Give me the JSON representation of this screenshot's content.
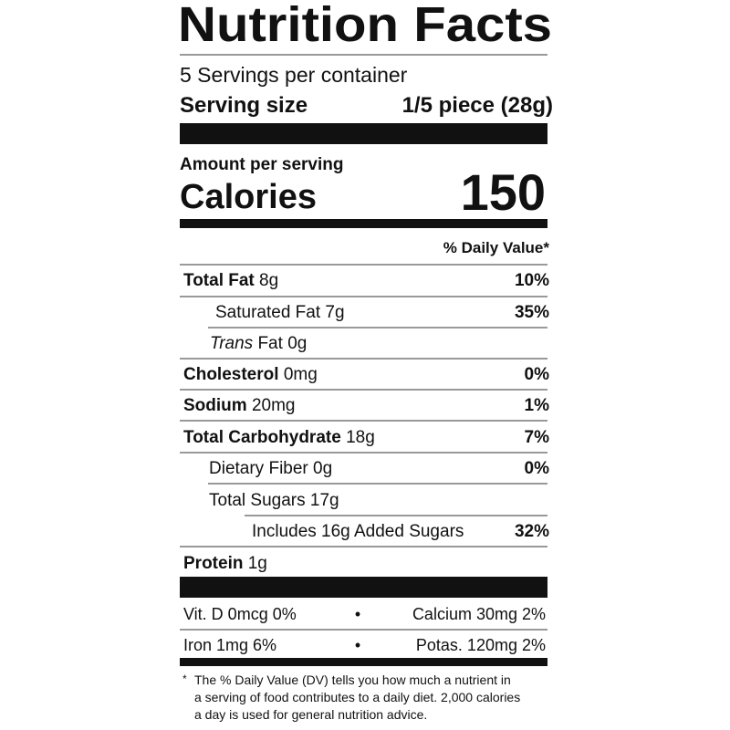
{
  "title": "Nutrition Facts",
  "servings_per_container": "5 Servings per container",
  "serving_size": {
    "label": "Serving size",
    "value": "1/5 piece (28g)"
  },
  "amount_per_serving": "Amount per serving",
  "calories": {
    "label": "Calories",
    "value": 150
  },
  "daily_value_header": "% Daily Value*",
  "nutrients": [
    {
      "name": "Total Fat",
      "amount": "8g",
      "dv": "10%"
    },
    {
      "name": "Saturated Fat",
      "amount": "7g",
      "dv": "35%"
    },
    {
      "name_italic": "Trans",
      "name": "Fat",
      "amount": "0g"
    },
    {
      "name": "Cholesterol",
      "amount": "0mg",
      "dv": "0%"
    },
    {
      "name": "Sodium",
      "amount": "20mg",
      "dv": "1%"
    },
    {
      "name": "Total Carbohydrate",
      "amount": "18g",
      "dv": "7%"
    },
    {
      "name": "Dietary Fiber",
      "amount": "0g",
      "dv": "0%"
    },
    {
      "name": "Total Sugars",
      "amount": "17g"
    },
    {
      "name": "Includes 16g Added Sugars",
      "dv": "32%"
    },
    {
      "name": "Protein",
      "amount": "1g"
    }
  ],
  "vitamins": [
    [
      "Vit. D 0mcg 0%",
      "Calcium 30mg 2%"
    ],
    [
      "Iron 1mg 6%",
      "Potas. 120mg 2%"
    ]
  ],
  "footnote": [
    "The % Daily Value (DV) tells you how much a nutrient in",
    "a serving of food contributes to a daily diet. 2,000 calories",
    "a day is used for general nutrition advice."
  ]
}
